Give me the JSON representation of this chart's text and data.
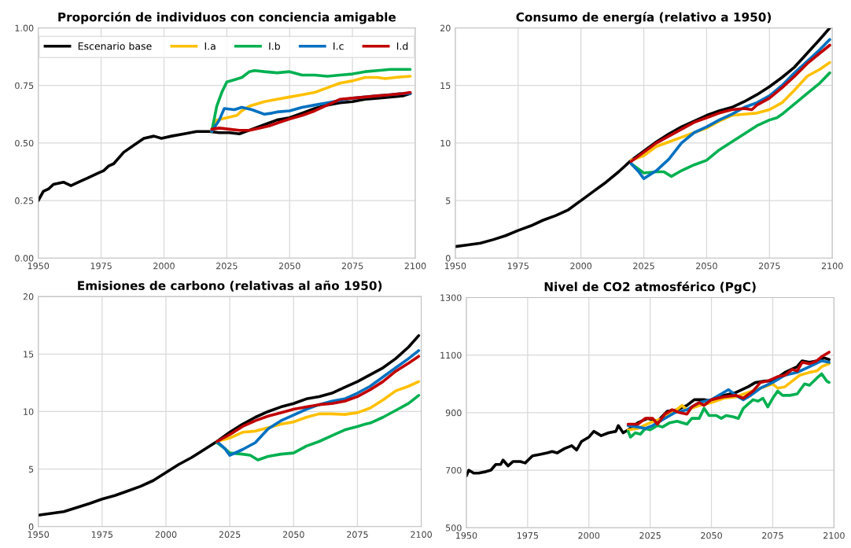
{
  "chart_data": [
    {
      "type": "line",
      "title": "Proporción de individuos con conciencia amigable",
      "xlim": [
        1950,
        2100
      ],
      "xticks": [
        1950,
        1975,
        2000,
        2025,
        2050,
        2075,
        2100
      ],
      "ylim": [
        0,
        1
      ],
      "yticks": [
        {
          "value": 0,
          "label": "0.00"
        },
        {
          "value": 0.25,
          "label": "0.25"
        },
        {
          "value": 0.5,
          "label": "0.50"
        },
        {
          "value": 0.75,
          "label": "0.75"
        },
        {
          "value": 1,
          "label": "1.00"
        }
      ],
      "grid": true,
      "legend": "top",
      "series": [
        {
          "name": "Escenario base",
          "color": "#000000",
          "x": [
            1950,
            1952,
            1954,
            1956,
            1960,
            1963,
            1966,
            1970,
            1974,
            1976,
            1978,
            1980,
            1984,
            1988,
            1992,
            1996,
            1999,
            2003,
            2008,
            2013,
            2018,
            2022,
            2026,
            2030,
            2035,
            2040,
            2045,
            2050,
            2055,
            2060,
            2065,
            2070,
            2075,
            2080,
            2085,
            2090,
            2095,
            2098
          ],
          "values": [
            0.25,
            0.29,
            0.3,
            0.32,
            0.33,
            0.315,
            0.33,
            0.35,
            0.37,
            0.38,
            0.4,
            0.41,
            0.46,
            0.49,
            0.52,
            0.53,
            0.52,
            0.53,
            0.54,
            0.55,
            0.55,
            0.545,
            0.545,
            0.54,
            0.56,
            0.58,
            0.6,
            0.61,
            0.63,
            0.65,
            0.665,
            0.675,
            0.68,
            0.69,
            0.695,
            0.7,
            0.705,
            0.715
          ]
        },
        {
          "name": "I.a",
          "color": "#ffc000",
          "x": [
            2019,
            2021,
            2025,
            2029,
            2031,
            2034,
            2040,
            2045,
            2050,
            2055,
            2060,
            2065,
            2070,
            2075,
            2080,
            2085,
            2088,
            2092,
            2098
          ],
          "values": [
            0.55,
            0.6,
            0.61,
            0.62,
            0.64,
            0.66,
            0.68,
            0.69,
            0.7,
            0.71,
            0.72,
            0.74,
            0.76,
            0.77,
            0.785,
            0.785,
            0.78,
            0.785,
            0.79
          ]
        },
        {
          "name": "I.b",
          "color": "#00b050",
          "x": [
            2019,
            2021,
            2023,
            2025,
            2028,
            2031,
            2034,
            2036,
            2040,
            2045,
            2050,
            2055,
            2060,
            2065,
            2070,
            2075,
            2080,
            2085,
            2090,
            2095,
            2098
          ],
          "values": [
            0.55,
            0.66,
            0.72,
            0.765,
            0.775,
            0.785,
            0.81,
            0.815,
            0.81,
            0.805,
            0.81,
            0.795,
            0.795,
            0.79,
            0.795,
            0.8,
            0.81,
            0.815,
            0.82,
            0.82,
            0.82
          ]
        },
        {
          "name": "I.c",
          "color": "#0070c0",
          "x": [
            2019,
            2022,
            2024,
            2028,
            2031,
            2035,
            2040,
            2043,
            2045,
            2050,
            2055,
            2060,
            2065,
            2070,
            2075,
            2080,
            2085,
            2090,
            2095,
            2098
          ],
          "values": [
            0.55,
            0.6,
            0.65,
            0.645,
            0.655,
            0.645,
            0.625,
            0.63,
            0.635,
            0.64,
            0.655,
            0.665,
            0.675,
            0.685,
            0.695,
            0.7,
            0.705,
            0.71,
            0.715,
            0.715
          ]
        },
        {
          "name": "I.d",
          "color": "#c00000",
          "x": [
            2019,
            2022,
            2026,
            2030,
            2034,
            2038,
            2042,
            2046,
            2050,
            2055,
            2060,
            2065,
            2070,
            2075,
            2080,
            2085,
            2090,
            2095,
            2098
          ],
          "values": [
            0.56,
            0.565,
            0.56,
            0.555,
            0.555,
            0.565,
            0.575,
            0.59,
            0.605,
            0.62,
            0.64,
            0.665,
            0.69,
            0.695,
            0.7,
            0.705,
            0.71,
            0.715,
            0.72
          ]
        }
      ]
    },
    {
      "type": "line",
      "title": "Consumo de energía (relativo a 1950)",
      "xlim": [
        1950,
        2100
      ],
      "xticks": [
        1950,
        1975,
        2000,
        2025,
        2050,
        2075,
        2100
      ],
      "ylim": [
        0,
        20
      ],
      "yticks": [
        0,
        5,
        10,
        15,
        20
      ],
      "grid": true,
      "series": [
        {
          "color": "#000000",
          "x": [
            1950,
            1955,
            1960,
            1965,
            1970,
            1975,
            1980,
            1985,
            1990,
            1995,
            2000,
            2005,
            2010,
            2015,
            2020,
            2025,
            2030,
            2035,
            2040,
            2045,
            2050,
            2055,
            2060,
            2065,
            2070,
            2075,
            2080,
            2085,
            2090,
            2095,
            2099
          ],
          "values": [
            1,
            1.15,
            1.3,
            1.6,
            1.95,
            2.4,
            2.8,
            3.3,
            3.7,
            4.2,
            5.0,
            5.8,
            6.6,
            7.5,
            8.5,
            9.3,
            10.1,
            10.8,
            11.4,
            11.9,
            12.4,
            12.8,
            13.1,
            13.6,
            14.2,
            14.9,
            15.7,
            16.6,
            17.8,
            19.0,
            20.0
          ]
        },
        {
          "color": "#ffc000",
          "x": [
            2020,
            2025,
            2030,
            2035,
            2040,
            2045,
            2050,
            2055,
            2060,
            2065,
            2070,
            2075,
            2080,
            2085,
            2090,
            2095,
            2099
          ],
          "values": [
            8.5,
            8.9,
            9.7,
            10.1,
            10.5,
            10.9,
            11.3,
            11.9,
            12.4,
            12.5,
            12.6,
            12.9,
            13.5,
            14.6,
            15.8,
            16.4,
            17.0
          ]
        },
        {
          "color": "#00b050",
          "x": [
            2020,
            2025,
            2030,
            2033,
            2036,
            2040,
            2045,
            2050,
            2055,
            2060,
            2065,
            2070,
            2075,
            2078,
            2080,
            2085,
            2090,
            2095,
            2099
          ],
          "values": [
            8.2,
            7.4,
            7.5,
            7.5,
            7.1,
            7.6,
            8.1,
            8.5,
            9.4,
            10.1,
            10.8,
            11.5,
            12.0,
            12.2,
            12.5,
            13.4,
            14.3,
            15.2,
            16.1
          ]
        },
        {
          "color": "#0070c0",
          "x": [
            2020,
            2023,
            2025,
            2030,
            2035,
            2040,
            2045,
            2050,
            2055,
            2060,
            2065,
            2070,
            2075,
            2080,
            2085,
            2090,
            2095,
            2099
          ],
          "values": [
            8.2,
            7.5,
            6.9,
            7.6,
            8.6,
            10.0,
            10.9,
            11.4,
            12.0,
            12.5,
            13.1,
            13.5,
            14.1,
            15.0,
            16.1,
            17.1,
            18.1,
            19.0
          ]
        },
        {
          "color": "#c00000",
          "x": [
            2020,
            2025,
            2030,
            2035,
            2040,
            2045,
            2050,
            2055,
            2060,
            2065,
            2068,
            2070,
            2075,
            2080,
            2085,
            2090,
            2095,
            2099
          ],
          "values": [
            8.4,
            9.2,
            10.0,
            10.6,
            11.2,
            11.8,
            12.2,
            12.6,
            12.9,
            13.0,
            12.9,
            13.3,
            13.9,
            14.8,
            15.8,
            16.9,
            17.8,
            18.5
          ]
        }
      ]
    },
    {
      "type": "line",
      "title": "Emisiones de carbono (relativas al año 1950)",
      "xlim": [
        1950,
        2100
      ],
      "xticks": [
        1950,
        1975,
        2000,
        2025,
        2050,
        2075,
        2100
      ],
      "ylim": [
        0,
        20
      ],
      "yticks": [
        0,
        5,
        10,
        15,
        20
      ],
      "grid": true,
      "series": [
        {
          "color": "#000000",
          "x": [
            1950,
            1960,
            1970,
            1975,
            1980,
            1985,
            1990,
            1995,
            2000,
            2005,
            2010,
            2015,
            2020,
            2025,
            2030,
            2035,
            2040,
            2045,
            2050,
            2055,
            2060,
            2065,
            2070,
            2075,
            2080,
            2085,
            2090,
            2095,
            2099
          ],
          "values": [
            1,
            1.3,
            2.0,
            2.4,
            2.7,
            3.1,
            3.5,
            4.0,
            4.7,
            5.4,
            6.0,
            6.7,
            7.4,
            8.2,
            8.9,
            9.5,
            10.0,
            10.4,
            10.7,
            11.1,
            11.3,
            11.6,
            12.1,
            12.6,
            13.2,
            13.8,
            14.6,
            15.6,
            16.6
          ]
        },
        {
          "color": "#ffc000",
          "x": [
            2020,
            2025,
            2030,
            2035,
            2040,
            2045,
            2050,
            2055,
            2060,
            2065,
            2070,
            2075,
            2080,
            2085,
            2090,
            2095,
            2099
          ],
          "values": [
            7.4,
            7.7,
            8.2,
            8.3,
            8.6,
            8.9,
            9.1,
            9.5,
            9.8,
            9.8,
            9.75,
            9.9,
            10.3,
            11.0,
            11.8,
            12.2,
            12.6
          ]
        },
        {
          "color": "#00b050",
          "x": [
            2020,
            2023,
            2025,
            2030,
            2033,
            2036,
            2040,
            2045,
            2050,
            2055,
            2060,
            2065,
            2070,
            2075,
            2078,
            2080,
            2085,
            2090,
            2095,
            2099
          ],
          "values": [
            7.3,
            6.8,
            6.4,
            6.3,
            6.2,
            5.8,
            6.1,
            6.3,
            6.4,
            7.0,
            7.4,
            7.9,
            8.4,
            8.7,
            8.9,
            9.0,
            9.5,
            10.1,
            10.7,
            11.4
          ]
        },
        {
          "color": "#0070c0",
          "x": [
            2020,
            2023,
            2025,
            2030,
            2035,
            2040,
            2045,
            2050,
            2055,
            2060,
            2065,
            2070,
            2075,
            2080,
            2085,
            2090,
            2095,
            2099
          ],
          "values": [
            7.4,
            6.8,
            6.2,
            6.7,
            7.3,
            8.5,
            9.2,
            9.7,
            10.2,
            10.6,
            10.9,
            11.1,
            11.6,
            12.2,
            13.0,
            13.8,
            14.6,
            15.3
          ]
        },
        {
          "color": "#c00000",
          "x": [
            2020,
            2025,
            2030,
            2035,
            2040,
            2045,
            2050,
            2055,
            2060,
            2065,
            2070,
            2075,
            2080,
            2085,
            2090,
            2095,
            2099
          ],
          "values": [
            7.4,
            8.0,
            8.7,
            9.2,
            9.6,
            9.9,
            10.2,
            10.4,
            10.6,
            10.7,
            10.9,
            11.3,
            11.9,
            12.6,
            13.5,
            14.2,
            14.8
          ]
        }
      ]
    },
    {
      "type": "line",
      "title": "Nivel de CO2 atmosférico (PgC)",
      "xlim": [
        1950,
        2100
      ],
      "xticks": [
        1950,
        1975,
        2000,
        2025,
        2050,
        2075,
        2100
      ],
      "ylim": [
        500,
        1300
      ],
      "yticks": [
        500,
        700,
        900,
        1100,
        1300
      ],
      "grid": true,
      "series": [
        {
          "color": "#000000",
          "x": [
            1950,
            1951,
            1953,
            1955,
            1958,
            1960,
            1962,
            1964,
            1965,
            1967,
            1969,
            1972,
            1974,
            1977,
            1980,
            1983,
            1985,
            1987,
            1990,
            1993,
            1995,
            1997,
            2000,
            2002,
            2005,
            2008,
            2011,
            2012,
            2014,
            2016,
            2020,
            2024,
            2028,
            2032,
            2036,
            2040,
            2043,
            2047,
            2050,
            2055,
            2060,
            2065,
            2068,
            2072,
            2075,
            2080,
            2085,
            2087,
            2090,
            2093,
            2096,
            2098
          ],
          "values": [
            680,
            700,
            690,
            690,
            695,
            700,
            720,
            720,
            735,
            715,
            730,
            730,
            725,
            750,
            755,
            760,
            765,
            760,
            775,
            785,
            770,
            800,
            815,
            835,
            820,
            830,
            835,
            855,
            830,
            840,
            865,
            880,
            870,
            905,
            910,
            925,
            945,
            945,
            940,
            960,
            970,
            990,
            1005,
            1010,
            1010,
            1040,
            1060,
            1080,
            1075,
            1080,
            1090,
            1085
          ]
        },
        {
          "color": "#ffc000",
          "x": [
            2016,
            2020,
            2025,
            2030,
            2035,
            2038,
            2040,
            2045,
            2050,
            2055,
            2060,
            2065,
            2070,
            2075,
            2077,
            2080,
            2083,
            2086,
            2090,
            2093,
            2095,
            2098
          ],
          "values": [
            840,
            845,
            865,
            880,
            905,
            925,
            910,
            925,
            935,
            950,
            955,
            970,
            985,
            1000,
            985,
            990,
            1010,
            1030,
            1040,
            1045,
            1060,
            1070
          ]
        },
        {
          "color": "#00b050",
          "x": [
            2016,
            2017,
            2019,
            2021,
            2023,
            2025,
            2028,
            2030,
            2033,
            2036,
            2040,
            2042,
            2045,
            2047,
            2049,
            2052,
            2054,
            2056,
            2059,
            2061,
            2063,
            2065,
            2067,
            2069,
            2071,
            2073,
            2075,
            2077,
            2079,
            2082,
            2085,
            2088,
            2090,
            2093,
            2095,
            2097,
            2098
          ],
          "values": [
            835,
            815,
            830,
            825,
            845,
            840,
            855,
            850,
            865,
            870,
            860,
            880,
            880,
            915,
            890,
            890,
            880,
            890,
            885,
            880,
            915,
            930,
            945,
            940,
            950,
            920,
            950,
            975,
            960,
            960,
            965,
            1000,
            995,
            1020,
            1035,
            1010,
            1005
          ]
        },
        {
          "color": "#0070c0",
          "x": [
            2016,
            2020,
            2023,
            2026,
            2030,
            2035,
            2040,
            2045,
            2050,
            2054,
            2057,
            2060,
            2063,
            2066,
            2070,
            2075,
            2080,
            2085,
            2090,
            2095,
            2098
          ],
          "values": [
            855,
            850,
            845,
            855,
            875,
            900,
            910,
            935,
            945,
            965,
            980,
            960,
            945,
            960,
            985,
            1005,
            1030,
            1040,
            1060,
            1080,
            1075
          ]
        },
        {
          "color": "#c00000",
          "x": [
            2016,
            2020,
            2023,
            2026,
            2028,
            2031,
            2034,
            2037,
            2040,
            2042,
            2045,
            2047,
            2050,
            2055,
            2060,
            2063,
            2067,
            2070,
            2073,
            2077,
            2080,
            2083,
            2085,
            2087,
            2090,
            2093,
            2095,
            2098
          ],
          "values": [
            860,
            860,
            880,
            880,
            860,
            895,
            910,
            900,
            895,
            920,
            935,
            925,
            945,
            955,
            960,
            950,
            975,
            1005,
            1010,
            1025,
            1030,
            1050,
            1045,
            1075,
            1070,
            1080,
            1095,
            1110
          ]
        }
      ]
    }
  ]
}
